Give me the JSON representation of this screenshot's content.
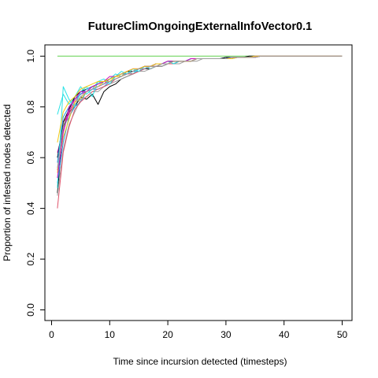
{
  "chart_data": {
    "type": "line",
    "title": "FutureClimOngoingExternalInfoVector0.1",
    "xlabel": "Time since incursion detected (timesteps)",
    "ylabel": "Proportion of infested nodes detected",
    "xlim": [
      0,
      50
    ],
    "ylim": [
      0,
      1
    ],
    "x_ticks": [
      0,
      10,
      20,
      30,
      40,
      50
    ],
    "y_ticks": [
      "0.0",
      "0.2",
      "0.4",
      "0.6",
      "0.8",
      "1.0"
    ],
    "grid": false,
    "legend": "none",
    "x": [
      1,
      2,
      3,
      4,
      5,
      6,
      7,
      8,
      9,
      10,
      11,
      12,
      13,
      14,
      15,
      16,
      17,
      18,
      19,
      20,
      21,
      22,
      23,
      24,
      25,
      26,
      27,
      28,
      29,
      30,
      31,
      32,
      33,
      34,
      35,
      36,
      37,
      38,
      39,
      40,
      41,
      42,
      43,
      44,
      45,
      46,
      47,
      48,
      49,
      50
    ],
    "series": [
      {
        "color": "#000000",
        "values": [
          0.46,
          0.72,
          0.78,
          0.8,
          0.84,
          0.83,
          0.85,
          0.81,
          0.86,
          0.88,
          0.89,
          0.91,
          0.92,
          0.93,
          0.94,
          0.95,
          0.95,
          0.96,
          0.96,
          0.97,
          0.97,
          0.98,
          0.98,
          0.98,
          0.99,
          0.99,
          0.99,
          0.99,
          0.99,
          0.995,
          0.995,
          0.995,
          0.995,
          0.995,
          0.995,
          1.0,
          1.0,
          1.0,
          1.0,
          1.0,
          1.0,
          1.0,
          1.0,
          1.0,
          1.0,
          1.0,
          1.0,
          1.0,
          1.0,
          1.0
        ]
      },
      {
        "color": "#df536b",
        "values": [
          0.55,
          0.74,
          0.77,
          0.82,
          0.85,
          0.86,
          0.87,
          0.88,
          0.89,
          0.9,
          0.91,
          0.92,
          0.93,
          0.94,
          0.95,
          0.95,
          0.96,
          0.96,
          0.97,
          0.97,
          0.98,
          0.98,
          0.98,
          0.98,
          0.99,
          0.99,
          0.99,
          0.99,
          0.99,
          0.99,
          0.995,
          0.995,
          0.995,
          0.995,
          1.0,
          1.0,
          1.0,
          1.0,
          1.0,
          1.0,
          1.0,
          1.0,
          1.0,
          1.0,
          1.0,
          1.0,
          1.0,
          1.0,
          1.0,
          1.0
        ]
      },
      {
        "color": "#61d04f",
        "values": [
          1.0,
          1.0,
          1.0,
          1.0,
          1.0,
          1.0,
          1.0,
          1.0,
          1.0,
          1.0,
          1.0,
          1.0,
          1.0,
          1.0,
          1.0,
          1.0,
          1.0,
          1.0,
          1.0,
          1.0,
          1.0,
          1.0,
          1.0,
          1.0,
          1.0,
          1.0,
          1.0,
          1.0,
          1.0,
          1.0,
          1.0,
          1.0,
          1.0,
          1.0,
          1.0,
          1.0,
          1.0,
          1.0,
          1.0,
          1.0,
          1.0,
          1.0,
          1.0,
          1.0,
          1.0,
          1.0,
          1.0,
          1.0,
          1.0,
          1.0
        ]
      },
      {
        "color": "#2297e6",
        "values": [
          0.5,
          0.66,
          0.76,
          0.8,
          0.82,
          0.86,
          0.87,
          0.87,
          0.88,
          0.9,
          0.91,
          0.92,
          0.93,
          0.94,
          0.94,
          0.95,
          0.96,
          0.96,
          0.97,
          0.97,
          0.97,
          0.98,
          0.98,
          0.98,
          0.99,
          0.99,
          0.99,
          0.99,
          0.99,
          0.99,
          0.99,
          0.995,
          0.995,
          0.995,
          0.995,
          1.0,
          1.0,
          1.0,
          1.0,
          1.0,
          1.0,
          1.0,
          1.0,
          1.0,
          1.0,
          1.0,
          1.0,
          1.0,
          1.0,
          1.0
        ]
      },
      {
        "color": "#28e2e5",
        "values": [
          0.77,
          0.85,
          0.81,
          0.84,
          0.88,
          0.85,
          0.87,
          0.9,
          0.89,
          0.91,
          0.93,
          0.92,
          0.94,
          0.93,
          0.95,
          0.96,
          0.95,
          0.96,
          0.97,
          0.97,
          0.98,
          0.98,
          0.98,
          0.99,
          0.99,
          0.99,
          0.99,
          0.99,
          0.99,
          0.995,
          0.995,
          0.995,
          0.995,
          0.995,
          1.0,
          1.0,
          1.0,
          1.0,
          1.0,
          1.0,
          1.0,
          1.0,
          1.0,
          1.0,
          1.0,
          1.0,
          1.0,
          1.0,
          1.0,
          1.0
        ]
      },
      {
        "color": "#cd0bbc",
        "values": [
          0.62,
          0.7,
          0.78,
          0.83,
          0.85,
          0.86,
          0.87,
          0.88,
          0.89,
          0.91,
          0.92,
          0.93,
          0.93,
          0.94,
          0.95,
          0.95,
          0.96,
          0.97,
          0.97,
          0.97,
          0.98,
          0.98,
          0.98,
          0.98,
          0.99,
          0.99,
          0.99,
          0.99,
          0.99,
          0.99,
          0.995,
          0.995,
          0.995,
          0.995,
          0.995,
          1.0,
          1.0,
          1.0,
          1.0,
          1.0,
          1.0,
          1.0,
          1.0,
          1.0,
          1.0,
          1.0,
          1.0,
          1.0,
          1.0,
          1.0
        ]
      },
      {
        "color": "#f5c710",
        "values": [
          0.54,
          0.68,
          0.75,
          0.82,
          0.83,
          0.86,
          0.88,
          0.88,
          0.9,
          0.9,
          0.92,
          0.92,
          0.94,
          0.94,
          0.95,
          0.96,
          0.96,
          0.96,
          0.97,
          0.97,
          0.98,
          0.98,
          0.98,
          0.98,
          0.99,
          0.99,
          0.99,
          0.99,
          0.99,
          0.99,
          0.995,
          0.995,
          0.995,
          0.995,
          1.0,
          1.0,
          1.0,
          1.0,
          1.0,
          1.0,
          1.0,
          1.0,
          1.0,
          1.0,
          1.0,
          1.0,
          1.0,
          1.0,
          1.0,
          1.0
        ]
      },
      {
        "color": "#9e9e9e",
        "values": [
          0.45,
          0.63,
          0.73,
          0.78,
          0.83,
          0.84,
          0.86,
          0.86,
          0.88,
          0.89,
          0.9,
          0.91,
          0.92,
          0.93,
          0.94,
          0.94,
          0.95,
          0.96,
          0.96,
          0.97,
          0.97,
          0.97,
          0.98,
          0.98,
          0.98,
          0.99,
          0.99,
          0.99,
          0.99,
          0.99,
          0.99,
          0.995,
          0.995,
          0.995,
          0.995,
          1.0,
          1.0,
          1.0,
          1.0,
          1.0,
          1.0,
          1.0,
          1.0,
          1.0,
          1.0,
          1.0,
          1.0,
          1.0,
          1.0,
          1.0
        ]
      },
      {
        "color": "#000000",
        "values": [
          0.6,
          0.74,
          0.79,
          0.84,
          0.86,
          0.87,
          0.88,
          0.89,
          0.9,
          0.91,
          0.92,
          0.93,
          0.94,
          0.94,
          0.95,
          0.96,
          0.96,
          0.97,
          0.97,
          0.98,
          0.98,
          0.98,
          0.98,
          0.99,
          0.99,
          0.99,
          0.99,
          0.99,
          0.99,
          0.995,
          0.995,
          0.995,
          0.995,
          1.0,
          1.0,
          1.0,
          1.0,
          1.0,
          1.0,
          1.0,
          1.0,
          1.0,
          1.0,
          1.0,
          1.0,
          1.0,
          1.0,
          1.0,
          1.0,
          1.0
        ]
      },
      {
        "color": "#df536b",
        "values": [
          0.4,
          0.62,
          0.72,
          0.79,
          0.82,
          0.84,
          0.86,
          0.87,
          0.88,
          0.89,
          0.91,
          0.92,
          0.93,
          0.93,
          0.94,
          0.95,
          0.96,
          0.96,
          0.97,
          0.97,
          0.97,
          0.98,
          0.98,
          0.98,
          0.99,
          0.99,
          0.99,
          0.99,
          0.99,
          0.99,
          0.995,
          0.995,
          0.995,
          0.995,
          0.995,
          1.0,
          1.0,
          1.0,
          1.0,
          1.0,
          1.0,
          1.0,
          1.0,
          1.0,
          1.0,
          1.0,
          1.0,
          1.0,
          1.0,
          1.0
        ]
      },
      {
        "color": "#2297e6",
        "values": [
          0.58,
          0.76,
          0.8,
          0.83,
          0.85,
          0.87,
          0.88,
          0.89,
          0.9,
          0.91,
          0.92,
          0.93,
          0.93,
          0.94,
          0.95,
          0.95,
          0.96,
          0.97,
          0.97,
          0.97,
          0.98,
          0.98,
          0.98,
          0.99,
          0.99,
          0.99,
          0.99,
          0.99,
          0.99,
          0.99,
          0.995,
          0.995,
          0.995,
          0.995,
          1.0,
          1.0,
          1.0,
          1.0,
          1.0,
          1.0,
          1.0,
          1.0,
          1.0,
          1.0,
          1.0,
          1.0,
          1.0,
          1.0,
          1.0,
          1.0
        ]
      },
      {
        "color": "#28e2e5",
        "values": [
          0.48,
          0.88,
          0.83,
          0.8,
          0.86,
          0.88,
          0.84,
          0.9,
          0.91,
          0.89,
          0.92,
          0.94,
          0.93,
          0.95,
          0.94,
          0.96,
          0.96,
          0.97,
          0.97,
          0.98,
          0.97,
          0.98,
          0.98,
          0.99,
          0.99,
          0.99,
          0.99,
          0.99,
          0.99,
          0.99,
          0.995,
          0.995,
          0.995,
          0.995,
          1.0,
          1.0,
          1.0,
          1.0,
          1.0,
          1.0,
          1.0,
          1.0,
          1.0,
          1.0,
          1.0,
          1.0,
          1.0,
          1.0,
          1.0,
          1.0
        ]
      },
      {
        "color": "#cd0bbc",
        "values": [
          0.52,
          0.7,
          0.8,
          0.83,
          0.86,
          0.86,
          0.88,
          0.89,
          0.9,
          0.92,
          0.92,
          0.93,
          0.94,
          0.95,
          0.95,
          0.96,
          0.96,
          0.97,
          0.97,
          0.98,
          0.98,
          0.98,
          0.98,
          0.99,
          0.99,
          0.99,
          0.99,
          0.99,
          0.99,
          0.99,
          0.995,
          0.995,
          0.995,
          0.995,
          1.0,
          1.0,
          1.0,
          1.0,
          1.0,
          1.0,
          1.0,
          1.0,
          1.0,
          1.0,
          1.0,
          1.0,
          1.0,
          1.0,
          1.0,
          1.0
        ]
      },
      {
        "color": "#f5c710",
        "values": [
          0.66,
          0.78,
          0.82,
          0.84,
          0.87,
          0.88,
          0.89,
          0.9,
          0.9,
          0.91,
          0.92,
          0.93,
          0.94,
          0.95,
          0.95,
          0.96,
          0.96,
          0.97,
          0.97,
          0.97,
          0.98,
          0.98,
          0.98,
          0.98,
          0.99,
          0.99,
          0.99,
          0.99,
          0.99,
          0.99,
          0.99,
          0.995,
          0.995,
          0.995,
          1.0,
          1.0,
          1.0,
          1.0,
          1.0,
          1.0,
          1.0,
          1.0,
          1.0,
          1.0,
          1.0,
          1.0,
          1.0,
          1.0,
          1.0,
          1.0
        ]
      },
      {
        "color": "#9e9e9e",
        "values": [
          0.56,
          0.72,
          0.76,
          0.81,
          0.84,
          0.86,
          0.87,
          0.88,
          0.89,
          0.9,
          0.91,
          0.92,
          0.93,
          0.94,
          0.95,
          0.95,
          0.96,
          0.96,
          0.97,
          0.97,
          0.98,
          0.98,
          0.98,
          0.98,
          0.99,
          0.99,
          0.99,
          0.99,
          0.99,
          0.99,
          0.995,
          0.995,
          0.995,
          0.995,
          0.995,
          1.0,
          1.0,
          1.0,
          1.0,
          1.0,
          1.0,
          1.0,
          1.0,
          1.0,
          1.0,
          1.0,
          1.0,
          1.0,
          1.0,
          1.0
        ]
      }
    ]
  }
}
